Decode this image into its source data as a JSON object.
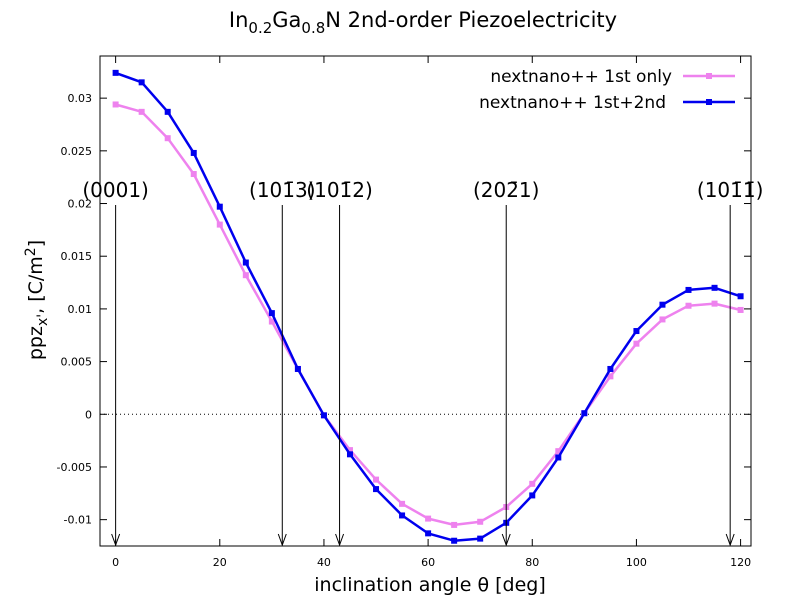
{
  "chart_data": {
    "type": "line",
    "title": {
      "prefix": "In",
      "sub1": "0.2",
      "mid": "Ga",
      "sub2": "0.8",
      "suffix": "N 2nd-order Piezoelectricity"
    },
    "xlabel": "inclination angle θ [deg]",
    "ylabel": {
      "base": "ppz",
      "sub": "x'",
      "mid": ", [C/m",
      "sup": "2",
      "end": "]"
    },
    "xlim": [
      -3,
      122
    ],
    "ylim": [
      -0.0125,
      0.034
    ],
    "x_ticks": [
      0,
      20,
      40,
      60,
      80,
      100,
      120
    ],
    "x_tick_labels": [
      "0",
      "20",
      "40",
      "60",
      "80",
      "100",
      "120"
    ],
    "y_ticks": [
      0.03,
      0.025,
      0.02,
      0.015,
      0.01,
      0.005,
      0,
      -0.005,
      -0.01
    ],
    "y_tick_labels": [
      "0.03",
      "0.025",
      "0.02",
      "0.015",
      "0.01",
      "0.005",
      "0",
      "-0.005",
      "-0.01"
    ],
    "grid": false,
    "legend_position": "top-right",
    "x": [
      0,
      5,
      10,
      15,
      20,
      25,
      30,
      35,
      40,
      45,
      50,
      55,
      60,
      65,
      70,
      75,
      80,
      85,
      90,
      95,
      100,
      105,
      110,
      115,
      120
    ],
    "series": [
      {
        "name": "nextnano++ 1st only",
        "color": "#ee82ee",
        "values": [
          0.0294,
          0.0287,
          0.0262,
          0.0228,
          0.018,
          0.0132,
          0.0088,
          0.0043,
          -0.0001,
          -0.0034,
          -0.0062,
          -0.0085,
          -0.0099,
          -0.0105,
          -0.0102,
          -0.0088,
          -0.0066,
          -0.0035,
          0.0001,
          0.0036,
          0.0067,
          0.009,
          0.0103,
          0.0105,
          0.0099
        ]
      },
      {
        "name": "nextnano++ 1st+2nd",
        "color": "#0000ee",
        "values": [
          0.0324,
          0.0315,
          0.0287,
          0.0248,
          0.0197,
          0.0144,
          0.0096,
          0.0043,
          -0.0001,
          -0.0038,
          -0.0071,
          -0.0096,
          -0.0113,
          -0.012,
          -0.0118,
          -0.0103,
          -0.0077,
          -0.0041,
          0.0001,
          0.0043,
          0.0079,
          0.0104,
          0.0118,
          0.012,
          0.0112
        ]
      }
    ],
    "annotations": [
      {
        "label": "(0001)",
        "x": 0
      },
      {
        "label": "(101̄3)",
        "x": 32
      },
      {
        "label": "(101̄2)",
        "x": 43
      },
      {
        "label": "(202̄1)",
        "x": 75
      },
      {
        "label": "(101̄1̄)",
        "x": 118
      }
    ]
  }
}
